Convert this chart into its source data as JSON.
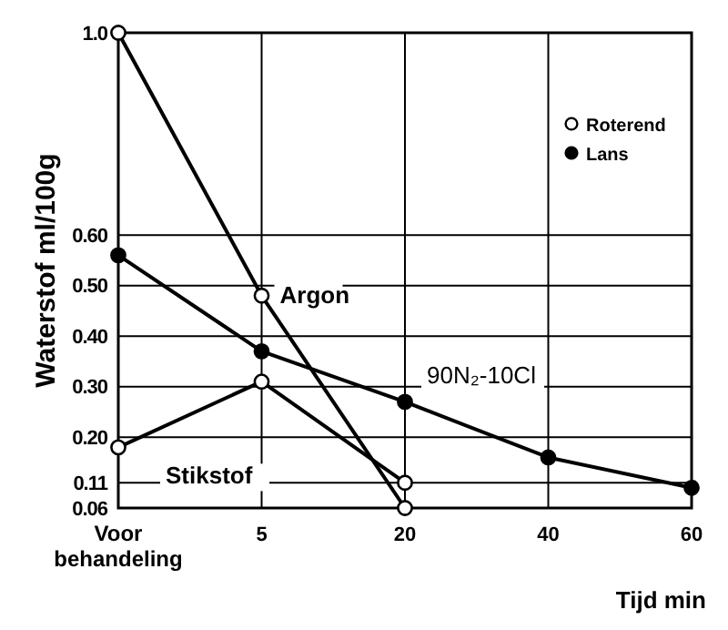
{
  "chart_data": {
    "type": "line",
    "ylabel": "Waterstof ml/100g",
    "xlabel": "Tijd min",
    "categories": [
      "Voor behandeling",
      "5",
      "20",
      "40",
      "60"
    ],
    "ylim": [
      0.06,
      1.0
    ],
    "yticks": [
      {
        "value": 0.06,
        "label": "0.06"
      },
      {
        "value": 0.11,
        "label": "0.11"
      },
      {
        "value": 0.2,
        "label": "0.20"
      },
      {
        "value": 0.3,
        "label": "0.30"
      },
      {
        "value": 0.4,
        "label": "0.40"
      },
      {
        "value": 0.5,
        "label": "0.50"
      },
      {
        "value": 0.6,
        "label": "0.60"
      },
      {
        "value": 1.0,
        "label": "1.0"
      }
    ],
    "grid": true,
    "line_style": "solid",
    "series": [
      {
        "name": "Argon",
        "color": "#000000",
        "marker": "circle-open",
        "values": [
          1.0,
          0.48,
          0.06,
          null,
          null
        ]
      },
      {
        "name": "Stikstof",
        "color": "#000000",
        "marker": "circle-open",
        "values": [
          0.18,
          0.31,
          0.11,
          null,
          null
        ]
      },
      {
        "name": "90N₂-10Cl",
        "color": "#000000",
        "marker": "circle",
        "values": [
          0.56,
          0.37,
          0.27,
          0.16,
          0.1
        ]
      }
    ],
    "annotations": [
      "Roterend",
      "Lans"
    ]
  }
}
